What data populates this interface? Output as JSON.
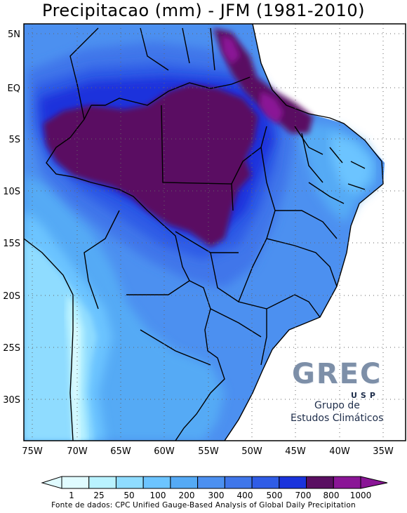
{
  "title": "Precipitacao (mm) - JFM (1981-2010)",
  "map": {
    "lat_ticks": [
      "5N",
      "EQ",
      "5S",
      "10S",
      "15S",
      "20S",
      "25S",
      "30S"
    ],
    "lon_ticks": [
      "75W",
      "70W",
      "65W",
      "60W",
      "55W",
      "50W",
      "45W",
      "40W",
      "35W"
    ],
    "region": "South America / Brazil"
  },
  "colorbar": {
    "labels": [
      "1",
      "25",
      "50",
      "100",
      "200",
      "300",
      "400",
      "500",
      "700",
      "800",
      "1000"
    ],
    "colors": [
      "#e0fbff",
      "#b9f2ff",
      "#8fdcff",
      "#6cc4ff",
      "#55aaf5",
      "#4c90f0",
      "#3f76ea",
      "#2f5ce6",
      "#1a33dc",
      "#5a0f62",
      "#8a1596"
    ]
  },
  "logo": {
    "wordmark": "GREC",
    "sub": "USP",
    "line1": "Grupo de",
    "line2": "Estudos Climáticos"
  },
  "source": "Fonte de dados: CPC Unified Gauge-Based Analysis of Global Daily Precipitation"
}
